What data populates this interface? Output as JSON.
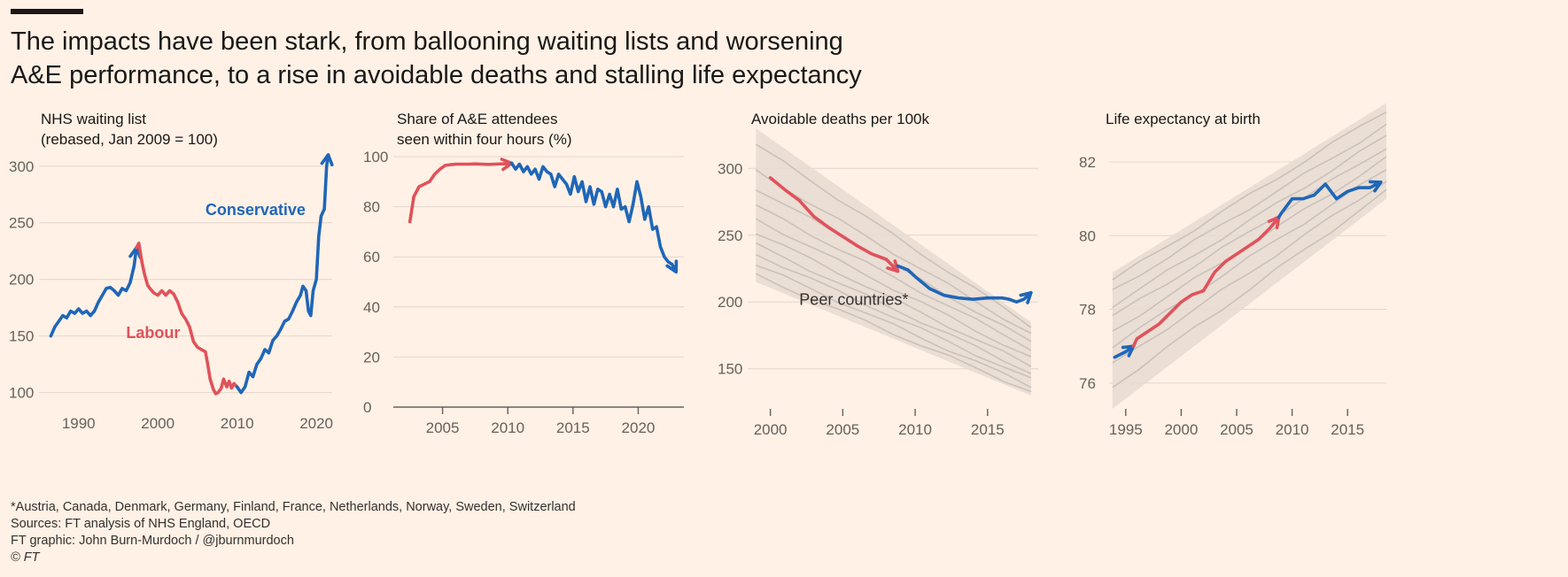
{
  "headline": {
    "line1": "The impacts have been stark, from ballooning waiting lists and worsening",
    "line2": "A&E performance, to a rise in avoidable deaths and stalling life expectancy"
  },
  "colors": {
    "background": "#fff1e5",
    "labour": "#e0525b",
    "conservative": "#1f66b8",
    "peers": "#c9c2bc",
    "peer_band": "#e6dbd2",
    "grid": "#e3d6cc",
    "axis": "#66605c"
  },
  "footer": {
    "note": "*Austria, Canada, Denmark, Germany, Finland, France, Netherlands, Norway, Sweden, Switzerland",
    "sources": "Sources: FT analysis of NHS England, OECD",
    "credit": "FT graphic: John Burn-Murdoch / @jburnmurdoch",
    "copyright": "© FT"
  },
  "chart_data": [
    {
      "type": "line",
      "title": "NHS waiting list\n(rebased, Jan 2009 = 100)",
      "xlim": [
        1985,
        2022
      ],
      "ylim": [
        95,
        310
      ],
      "yticks": [
        100,
        150,
        200,
        250,
        300
      ],
      "xticks": [
        1990,
        2000,
        2010,
        2020
      ],
      "annotations": [
        {
          "text": "Conservative",
          "x": 2006,
          "y": 257,
          "color": "conservative"
        },
        {
          "text": "Labour",
          "x": 1996,
          "y": 148,
          "color": "labour"
        }
      ],
      "series": [
        {
          "name": "Conservative",
          "color": "conservative",
          "arrow": true,
          "x": [
            1986.5,
            1987,
            1987.5,
            1988,
            1988.5,
            1989,
            1989.5,
            1990,
            1990.5,
            1991,
            1991.5,
            1992,
            1992.5,
            1993,
            1993.5,
            1994,
            1994.5,
            1995,
            1995.5,
            1996,
            1996.5,
            1997,
            1997.3
          ],
          "y": [
            150,
            158,
            163,
            168,
            166,
            172,
            170,
            174,
            170,
            172,
            168,
            172,
            180,
            186,
            192,
            193,
            190,
            186,
            192,
            190,
            197,
            212,
            228
          ]
        },
        {
          "name": "Labour",
          "color": "labour",
          "arrow": false,
          "x": [
            1997.3,
            1997.6,
            1998,
            1998.3,
            1998.7,
            1999,
            1999.5,
            2000,
            2000.5,
            2001,
            2001.5,
            2002,
            2002.5,
            2003,
            2003.5,
            2004,
            2004.5,
            2005,
            2005.5,
            2006,
            2006.3,
            2006.6,
            2007,
            2007.3,
            2007.6,
            2008,
            2008.3,
            2008.7,
            2009,
            2009.3,
            2009.6,
            2010
          ],
          "y": [
            228,
            232,
            215,
            205,
            195,
            192,
            188,
            186,
            190,
            186,
            190,
            187,
            180,
            170,
            165,
            158,
            145,
            140,
            138,
            136,
            125,
            112,
            103,
            99,
            100,
            104,
            112,
            105,
            110,
            104,
            108,
            105
          ]
        },
        {
          "name": "Conservative",
          "color": "conservative",
          "arrow": true,
          "x": [
            2010,
            2010.5,
            2011,
            2011.5,
            2012,
            2012.5,
            2013,
            2013.5,
            2014,
            2014.5,
            2015,
            2015.5,
            2016,
            2016.5,
            2017,
            2017.5,
            2018,
            2018.3,
            2018.7,
            2019,
            2019.3,
            2019.6,
            2020,
            2020.3,
            2020.6,
            2021,
            2021.3,
            2021.5
          ],
          "y": [
            105,
            100,
            105,
            118,
            114,
            125,
            130,
            138,
            135,
            146,
            150,
            156,
            163,
            165,
            172,
            180,
            186,
            194,
            190,
            172,
            168,
            190,
            200,
            238,
            256,
            262,
            300,
            310
          ]
        }
      ]
    },
    {
      "type": "line",
      "title": "Share of A&E attendees\nseen within four hours (%)",
      "xlim": [
        2001.5,
        2023.5
      ],
      "ylim": [
        0,
        100
      ],
      "yticks": [
        0,
        20,
        40,
        60,
        80,
        100
      ],
      "xticks": [
        2005,
        2010,
        2015,
        2020
      ],
      "series": [
        {
          "name": "Labour",
          "color": "labour",
          "arrow": true,
          "x": [
            2002.5,
            2002.8,
            2003.2,
            2003.6,
            2004,
            2004.4,
            2004.8,
            2005.2,
            2005.6,
            2006,
            2006.5,
            2007,
            2007.5,
            2008,
            2008.5,
            2009,
            2009.5,
            2010,
            2010.3
          ],
          "y": [
            74,
            84,
            88,
            89,
            90,
            93,
            95,
            96.5,
            96.8,
            97,
            97,
            97,
            97.1,
            97,
            96.9,
            97,
            97.1,
            97.2,
            97.4
          ]
        },
        {
          "name": "Conservative",
          "color": "conservative",
          "arrow": true,
          "x": [
            2010.3,
            2010.6,
            2010.9,
            2011.2,
            2011.5,
            2011.8,
            2012.1,
            2012.4,
            2012.7,
            2013,
            2013.3,
            2013.6,
            2013.9,
            2014.2,
            2014.5,
            2014.8,
            2015.1,
            2015.4,
            2015.7,
            2016,
            2016.3,
            2016.6,
            2016.9,
            2017.2,
            2017.5,
            2017.8,
            2018.1,
            2018.4,
            2018.7,
            2019,
            2019.3,
            2019.6,
            2019.9,
            2020.2,
            2020.5,
            2020.8,
            2021.1,
            2021.4,
            2021.7,
            2022,
            2022.3,
            2022.6,
            2022.9
          ],
          "y": [
            97.4,
            95,
            97,
            94,
            96,
            93,
            95,
            91,
            96,
            94,
            93,
            88,
            93,
            91,
            89,
            85,
            92,
            86,
            90,
            82,
            88,
            81,
            87,
            86,
            80,
            85,
            80,
            87,
            79,
            80,
            74,
            81,
            90,
            84,
            75,
            80,
            71,
            72,
            64,
            60,
            58,
            57,
            54
          ]
        }
      ]
    },
    {
      "type": "line",
      "title": "Avoidable deaths per 100k",
      "xlim": [
        1998.8,
        2018.5
      ],
      "ylim": [
        120,
        330
      ],
      "yticks": [
        150,
        200,
        250,
        300
      ],
      "xticks": [
        2000,
        2005,
        2010,
        2015
      ],
      "annotations": [
        {
          "text": "Peer countries*",
          "x": 2002,
          "y": 198
        }
      ],
      "peer_band": {
        "x": [
          1999,
          2018
        ],
        "upper": [
          330,
          185
        ],
        "lower": [
          215,
          130
        ]
      },
      "peers": [
        {
          "x": [
            1999,
            2018
          ],
          "y": [
            318,
            182
          ]
        },
        {
          "x": [
            1999,
            2018
          ],
          "y": [
            298,
            176
          ]
        },
        {
          "x": [
            1999,
            2018
          ],
          "y": [
            285,
            170
          ]
        },
        {
          "x": [
            1999,
            2018
          ],
          "y": [
            272,
            165
          ]
        },
        {
          "x": [
            1999,
            2018
          ],
          "y": [
            262,
            158
          ]
        },
        {
          "x": [
            1999,
            2018
          ],
          "y": [
            252,
            152
          ]
        },
        {
          "x": [
            1999,
            2018
          ],
          "y": [
            243,
            147
          ]
        },
        {
          "x": [
            1999,
            2018
          ],
          "y": [
            236,
            142
          ]
        },
        {
          "x": [
            1999,
            2018
          ],
          "y": [
            228,
            137
          ]
        },
        {
          "x": [
            1999,
            2018
          ],
          "y": [
            220,
            133
          ]
        }
      ],
      "series": [
        {
          "name": "Labour",
          "color": "labour",
          "arrow": true,
          "x": [
            2000,
            2001,
            2002,
            2003,
            2004,
            2005,
            2006,
            2007,
            2008,
            2008.8
          ],
          "y": [
            293,
            284,
            276,
            264,
            256,
            249,
            242,
            236,
            232,
            223
          ]
        },
        {
          "name": "Conservative",
          "color": "conservative",
          "arrow": true,
          "x": [
            2008.8,
            2009.5,
            2010,
            2011,
            2012,
            2013,
            2014,
            2015,
            2016,
            2016.5,
            2017,
            2017.5,
            2018
          ],
          "y": [
            227,
            224,
            219,
            210,
            205,
            203,
            202,
            203,
            203,
            202,
            200,
            202,
            207
          ]
        }
      ]
    },
    {
      "type": "line",
      "title": "Life expectancy at birth",
      "xlim": [
        1993.5,
        2018.5
      ],
      "ylim": [
        75.3,
        83.8
      ],
      "yticks": [
        76,
        78,
        80,
        82
      ],
      "xticks": [
        1995,
        2000,
        2005,
        2010,
        2015
      ],
      "peer_band": {
        "x": [
          1993.8,
          2018.5
        ],
        "upper": [
          79.0,
          83.6
        ],
        "lower": [
          75.3,
          81.0
        ]
      },
      "peers": [
        {
          "x": [
            1993.8,
            2018.5
          ],
          "y": [
            78.8,
            83.4
          ]
        },
        {
          "x": [
            1993.8,
            2018.5
          ],
          "y": [
            78.5,
            83.0
          ]
        },
        {
          "x": [
            1993.8,
            2018.5
          ],
          "y": [
            78.1,
            82.7
          ]
        },
        {
          "x": [
            1993.8,
            2018.5
          ],
          "y": [
            77.8,
            82.4
          ]
        },
        {
          "x": [
            1993.8,
            2018.5
          ],
          "y": [
            77.4,
            82.1
          ]
        },
        {
          "x": [
            1993.8,
            2018.5
          ],
          "y": [
            77.0,
            81.8
          ]
        },
        {
          "x": [
            1993.8,
            2018.5
          ],
          "y": [
            76.5,
            81.5
          ]
        },
        {
          "x": [
            1993.8,
            2018.5
          ],
          "y": [
            75.9,
            81.2
          ]
        }
      ],
      "series": [
        {
          "name": "Conservative",
          "color": "conservative",
          "arrow": true,
          "x": [
            1994,
            1995,
            1995.7
          ],
          "y": [
            76.7,
            76.85,
            77.0
          ]
        },
        {
          "name": "Labour",
          "color": "labour",
          "arrow": true,
          "x": [
            1995.7,
            1996,
            1997,
            1998,
            1999,
            2000,
            2001,
            2002,
            2003,
            2004,
            2005,
            2006,
            2007,
            2008,
            2008.8
          ],
          "y": [
            77.0,
            77.2,
            77.4,
            77.6,
            77.9,
            78.2,
            78.4,
            78.5,
            79.0,
            79.3,
            79.5,
            79.7,
            79.9,
            80.2,
            80.5
          ]
        },
        {
          "name": "Conservative",
          "color": "conservative",
          "arrow": true,
          "x": [
            2008.8,
            2009,
            2010,
            2011,
            2012,
            2013,
            2014,
            2015,
            2016,
            2017,
            2018
          ],
          "y": [
            80.5,
            80.6,
            81.0,
            81.0,
            81.1,
            81.4,
            81.0,
            81.2,
            81.3,
            81.3,
            81.45
          ]
        }
      ]
    }
  ]
}
